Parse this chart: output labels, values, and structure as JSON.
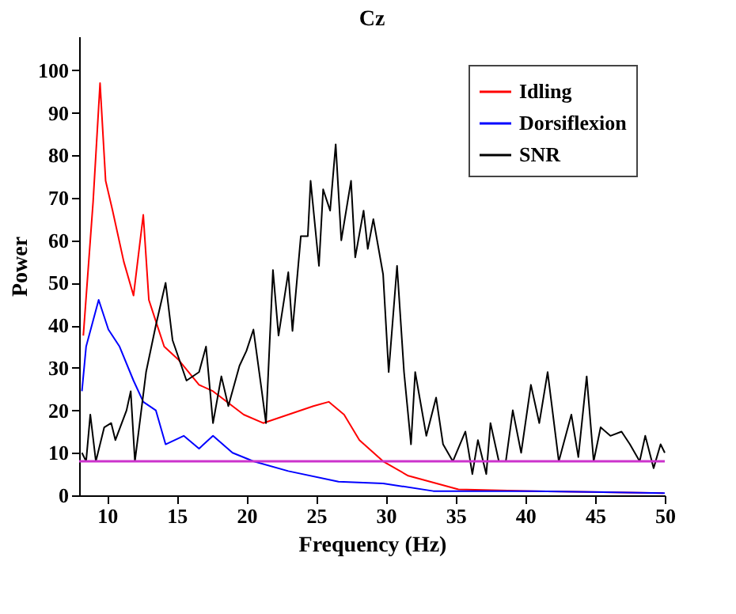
{
  "chart_data": {
    "type": "line",
    "title": "Cz",
    "xlabel": "Frequency (Hz)",
    "ylabel": "Power",
    "xlim": [
      8,
      50
    ],
    "ylim": [
      0,
      108
    ],
    "xticks": [
      10,
      15,
      20,
      25,
      30,
      35,
      40,
      45,
      50
    ],
    "yticks": [
      0,
      10,
      20,
      30,
      40,
      50,
      60,
      70,
      80,
      90,
      100
    ],
    "grid": false,
    "legend": "top right",
    "marker": "none",
    "line_style": "solid",
    "series": [
      {
        "name": "Idling",
        "color": "#ff0000",
        "x": [
          8.3,
          9.0,
          9.5,
          9.9,
          10.4,
          11.2,
          11.9,
          12.6,
          13.0,
          13.5,
          14.1,
          15.1,
          16.6,
          17.6,
          19.0,
          19.8,
          21.2,
          23.0,
          24.8,
          25.9,
          27.0,
          28.1,
          29.8,
          31.6,
          35.2,
          40.5,
          49.9
        ],
        "values": [
          37.6,
          69,
          97,
          74,
          67,
          55,
          47,
          66,
          46,
          41,
          35,
          32,
          26,
          24.5,
          21,
          19,
          17,
          19,
          21,
          22,
          19,
          13,
          8,
          4.6,
          1.4,
          1,
          0.5
        ]
      },
      {
        "name": "Dorsiflexion",
        "color": "#0000ff",
        "x": [
          8.2,
          8.5,
          9.4,
          10.1,
          10.9,
          11.9,
          12.6,
          13.5,
          14.2,
          15.5,
          16.6,
          17.6,
          19.0,
          20.5,
          23.0,
          26.6,
          29.8,
          33.4,
          40.5,
          50.0
        ],
        "values": [
          24.5,
          35,
          46,
          39,
          35,
          27,
          22,
          20,
          12,
          14,
          11,
          14,
          10,
          8,
          5.7,
          3.2,
          2.8,
          1,
          1,
          0.5
        ]
      },
      {
        "name": "SNR",
        "color": "#000000",
        "x": [
          8.2,
          8.5,
          8.8,
          9.2,
          9.8,
          10.3,
          10.6,
          11.4,
          11.7,
          12.0,
          12.8,
          13.5,
          14.2,
          14.7,
          15.7,
          16.6,
          17.1,
          17.6,
          18.2,
          18.7,
          19.5,
          20.0,
          20.5,
          21.1,
          21.4,
          21.9,
          22.3,
          23.0,
          23.3,
          23.9,
          24.4,
          24.6,
          25.2,
          25.5,
          26.0,
          26.4,
          26.8,
          27.5,
          27.8,
          28.4,
          28.7,
          29.1,
          29.8,
          30.2,
          30.8,
          31.3,
          31.8,
          32.1,
          32.9,
          33.6,
          34.1,
          34.8,
          35.7,
          36.2,
          36.6,
          37.2,
          37.5,
          38.1,
          38.6,
          39.1,
          39.7,
          40.4,
          41.0,
          41.6,
          42.4,
          43.3,
          43.8,
          44.4,
          44.9,
          45.4,
          46.1,
          46.9,
          47.5,
          48.2,
          48.6,
          49.2,
          49.7,
          50.0
        ],
        "values": [
          10,
          8,
          19,
          8,
          16,
          17,
          13,
          20,
          24.5,
          8,
          29,
          40,
          50,
          36.5,
          27,
          29,
          35,
          17,
          28,
          21,
          30.5,
          34,
          39,
          24.5,
          17,
          53,
          37.6,
          52.5,
          38.7,
          61,
          61,
          74,
          54,
          72,
          67,
          82.6,
          60,
          74,
          56,
          67,
          58,
          65,
          52,
          29,
          54,
          29,
          12,
          29,
          14,
          23,
          12,
          8,
          15,
          5,
          13,
          5,
          17,
          8,
          8,
          20,
          10,
          26,
          17,
          29,
          8,
          19,
          9,
          28,
          8,
          16,
          14,
          15,
          12,
          8,
          14,
          6.4,
          12,
          10
        ]
      }
    ],
    "ref_lines": [
      {
        "axis": "y",
        "value": 8,
        "color": "#cc33cc",
        "line_style": "solid"
      }
    ]
  }
}
